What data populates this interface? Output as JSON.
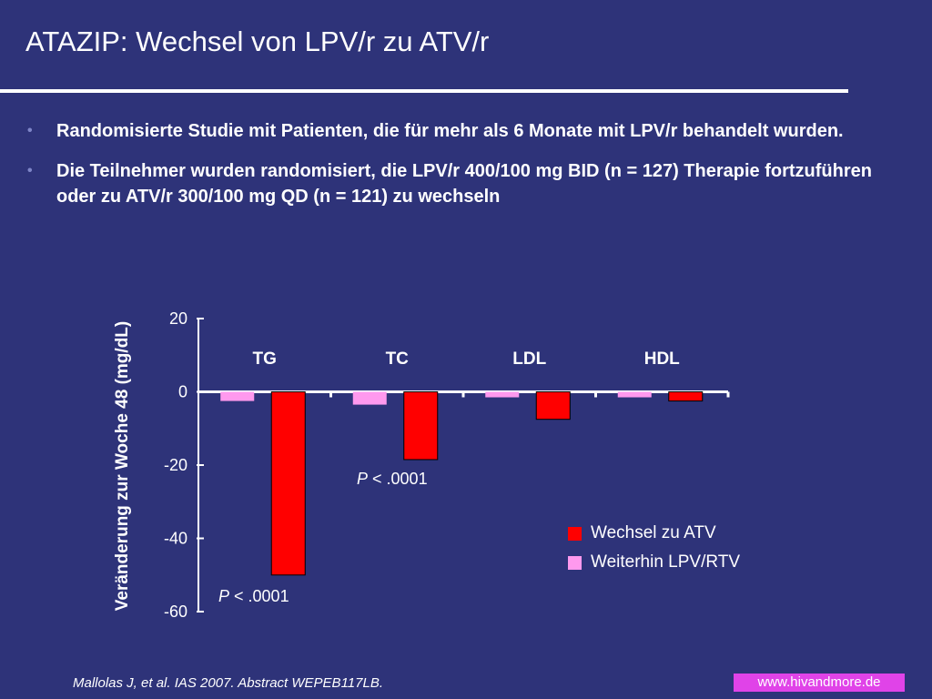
{
  "slide": {
    "title": "ATAZIP: Wechsel von LPV/r zu ATV/r",
    "bullets": [
      "Randomisierte Studie mit Patienten, die für mehr als 6 Monate mit LPV/r behandelt wurden.",
      "Die Teilnehmer wurden randomisiert, die LPV/r 400/100 mg BID (n = 127) Therapie fortzuführen oder zu ATV/r 300/100 mg QD (n = 121) zu wechseln"
    ],
    "bullet_marker": "•",
    "citation": "Mallolas J, et al. IAS 2007. Abstract WEPEB117LB.",
    "watermark": "www.hivandmore.de"
  },
  "colors": {
    "background": "#2e3379",
    "atv": "#ff0000",
    "lpv": "#ff99ee"
  },
  "chart_data": {
    "type": "bar",
    "title": "",
    "xlabel": "",
    "ylabel": "Veränderung zur Woche 48 (mg/dL)",
    "ylim": [
      -60,
      20
    ],
    "yticks": [
      20,
      0,
      -20,
      -40,
      -60
    ],
    "categories": [
      "TG",
      "TC",
      "LDL",
      "HDL"
    ],
    "series": [
      {
        "name": "Weiterhin LPV/RTV",
        "color": "#ff99ee",
        "values": [
          -2.5,
          -3.5,
          -1.5,
          -1.5
        ]
      },
      {
        "name": "Wechsel zu ATV",
        "color": "#ff0000",
        "values": [
          -50,
          -18.5,
          -7.5,
          -2.5
        ]
      }
    ],
    "legend": [
      {
        "label": "Wechsel zu ATV",
        "color": "#ff0000"
      },
      {
        "label": "Weiterhin LPV/RTV",
        "color": "#ff99ee"
      }
    ],
    "legend_position": "right",
    "grid": false,
    "annotations": [
      {
        "category": "TC",
        "p_label": "P",
        "text": " < .0001"
      },
      {
        "category": "TG",
        "p_label": "P",
        "text": " < .0001"
      }
    ]
  }
}
